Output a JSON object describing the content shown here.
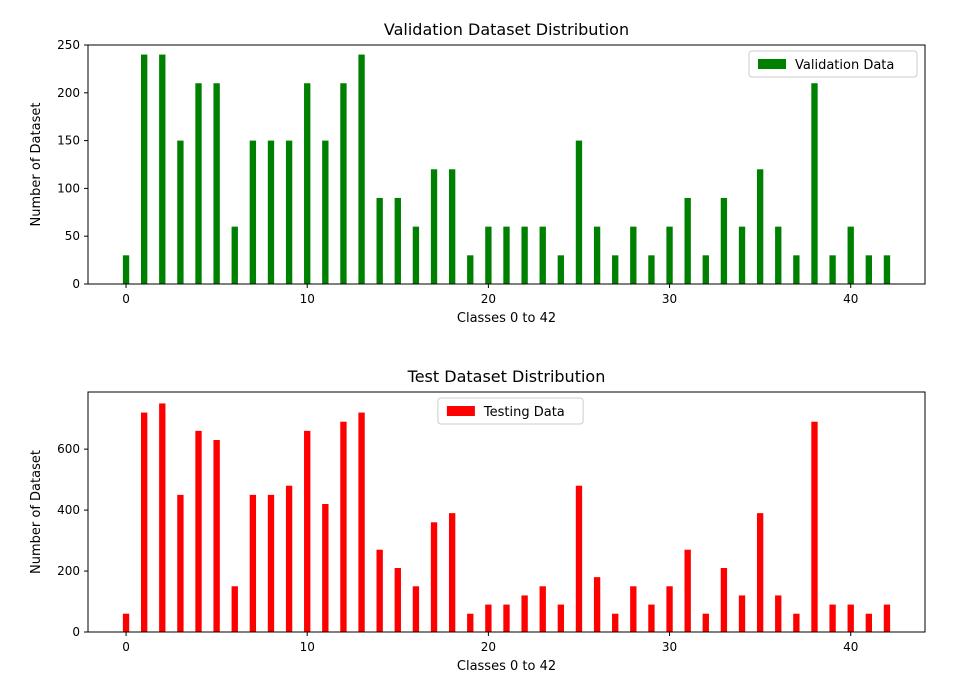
{
  "chart_data": [
    {
      "type": "bar",
      "title": "Validation Dataset Distribution",
      "xlabel": "Classes 0 to 42",
      "ylabel": "Number of Dataset",
      "xlim": [
        -2.1,
        44.1
      ],
      "ylim": [
        0,
        250
      ],
      "xticks": [
        0,
        10,
        20,
        30,
        40
      ],
      "yticks": [
        0,
        50,
        100,
        150,
        200,
        250
      ],
      "legend": {
        "label": "Validation Data",
        "location": "upper right"
      },
      "color": "#008000",
      "x": [
        0,
        1,
        2,
        3,
        4,
        5,
        6,
        7,
        8,
        9,
        10,
        11,
        12,
        13,
        14,
        15,
        16,
        17,
        18,
        19,
        20,
        21,
        22,
        23,
        24,
        25,
        26,
        27,
        28,
        29,
        30,
        31,
        32,
        33,
        34,
        35,
        36,
        37,
        38,
        39,
        40,
        41,
        42
      ],
      "values": [
        30,
        240,
        240,
        150,
        210,
        210,
        60,
        150,
        150,
        150,
        210,
        150,
        210,
        240,
        90,
        90,
        60,
        120,
        120,
        30,
        60,
        60,
        60,
        60,
        30,
        150,
        60,
        30,
        60,
        30,
        60,
        90,
        30,
        90,
        60,
        120,
        60,
        30,
        210,
        30,
        60,
        30,
        30
      ]
    },
    {
      "type": "bar",
      "title": "Test Dataset Distribution",
      "xlabel": "Classes 0 to 42",
      "ylabel": "Number of Dataset",
      "xlim": [
        -2.1,
        44.1
      ],
      "ylim": [
        0,
        787.5
      ],
      "xticks": [
        0,
        10,
        20,
        30,
        40
      ],
      "yticks": [
        0,
        200,
        400,
        600
      ],
      "legend": {
        "label": "Testing Data",
        "location": "upper center"
      },
      "color": "#ff0000",
      "x": [
        0,
        1,
        2,
        3,
        4,
        5,
        6,
        7,
        8,
        9,
        10,
        11,
        12,
        13,
        14,
        15,
        16,
        17,
        18,
        19,
        20,
        21,
        22,
        23,
        24,
        25,
        26,
        27,
        28,
        29,
        30,
        31,
        32,
        33,
        34,
        35,
        36,
        37,
        38,
        39,
        40,
        41,
        42
      ],
      "values": [
        60,
        720,
        750,
        450,
        660,
        630,
        150,
        450,
        450,
        480,
        660,
        420,
        690,
        720,
        270,
        210,
        150,
        360,
        390,
        60,
        90,
        90,
        120,
        150,
        90,
        480,
        180,
        60,
        150,
        90,
        150,
        270,
        60,
        210,
        120,
        390,
        120,
        60,
        690,
        90,
        90,
        60,
        90
      ]
    }
  ]
}
